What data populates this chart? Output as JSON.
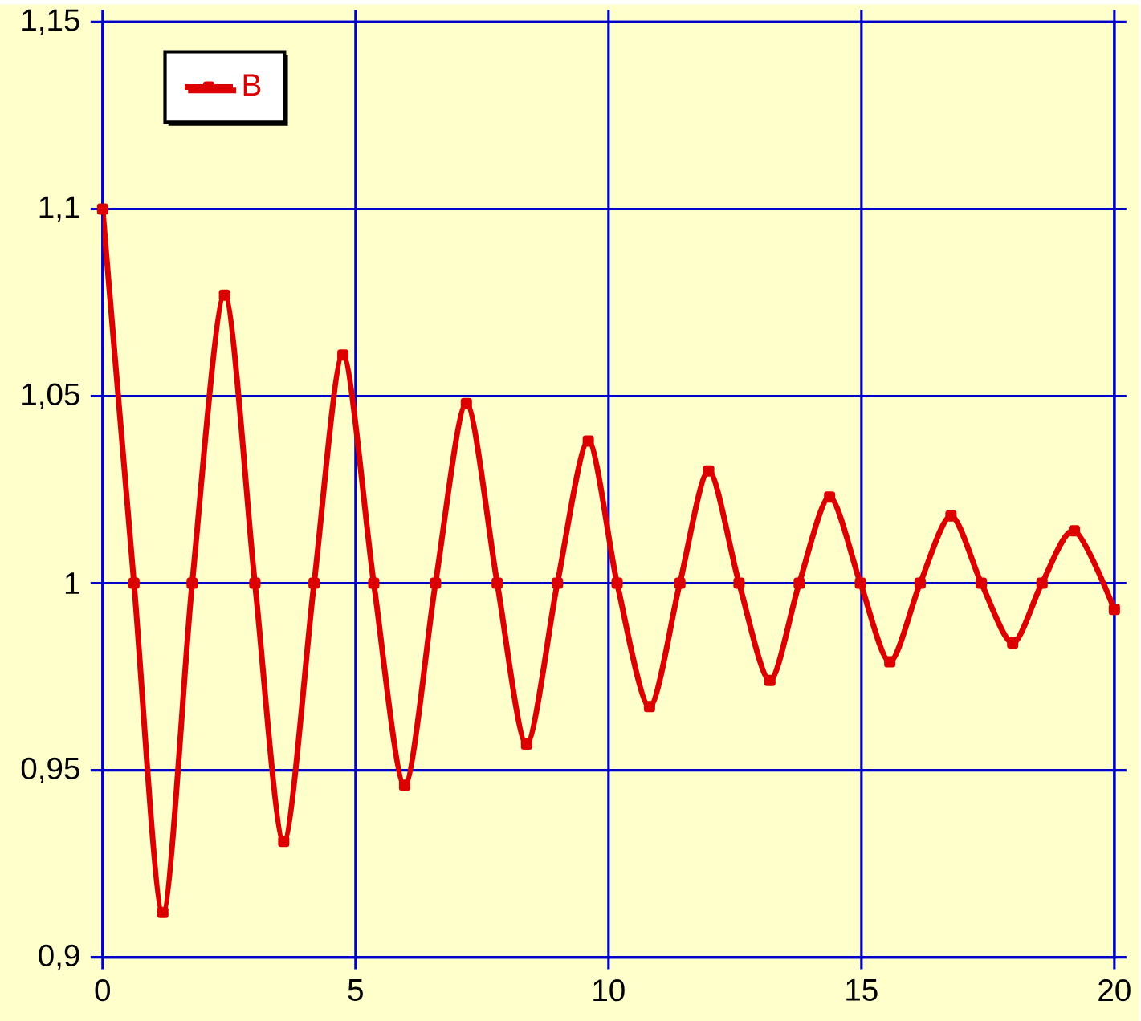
{
  "chart_data": {
    "type": "line",
    "x": [
      0,
      0.62,
      1.19,
      1.77,
      2.41,
      3.01,
      3.58,
      4.18,
      4.75,
      5.36,
      5.97,
      6.58,
      7.19,
      7.8,
      8.38,
      8.99,
      9.6,
      10.17,
      10.81,
      11.41,
      11.98,
      12.58,
      13.19,
      13.77,
      14.37,
      14.98,
      15.56,
      16.16,
      16.77,
      17.37,
      17.99,
      18.57,
      19.21,
      20
    ],
    "series": [
      {
        "name": "B",
        "color": "#dd0000",
        "values": [
          1.1,
          1.0,
          0.912,
          1.0,
          1.077,
          1.0,
          0.931,
          1.0,
          1.061,
          1.0,
          0.946,
          1.0,
          1.048,
          1.0,
          0.957,
          1.0,
          1.038,
          1.0,
          0.967,
          1.0,
          1.03,
          1.0,
          0.974,
          1.0,
          1.023,
          1.0,
          0.979,
          1.0,
          1.018,
          1.0,
          0.984,
          1.0,
          1.014,
          0.993
        ]
      }
    ],
    "xlim": [
      0,
      20
    ],
    "xticks": [
      0,
      5,
      10,
      15,
      20
    ],
    "ylim": [
      0.9,
      1.15
    ],
    "yticks": [
      {
        "value": 0.9,
        "label": "0,9"
      },
      {
        "value": 0.95,
        "label": "0,95"
      },
      {
        "value": 1,
        "label": "1"
      },
      {
        "value": 1.05,
        "label": "1,05"
      },
      {
        "value": 1.1,
        "label": "1,1"
      },
      {
        "value": 1.15,
        "label": "1,15"
      }
    ],
    "grid": true,
    "legend": "top left",
    "marker": "square",
    "line_style": "solid"
  }
}
